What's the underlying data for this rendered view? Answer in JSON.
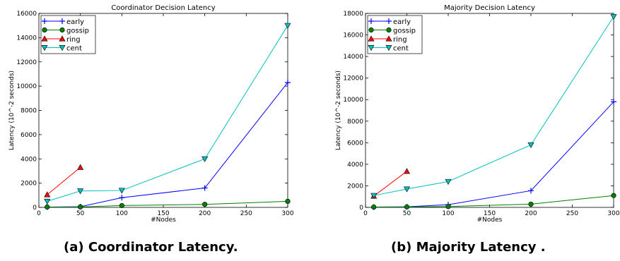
{
  "captions": {
    "a": "(a) Coordinator Latency.",
    "b": "(b) Majority Latency ."
  },
  "colors": {
    "early": "#0000ff",
    "gossip": "#008000",
    "ring": "#ff0000",
    "cent": "#00bfbf"
  },
  "chart_data": [
    {
      "type": "line",
      "title": "Coordinator Decision Latency",
      "xlabel": "#Nodes",
      "ylabel": "Latency (10^-2 seconds)",
      "xlim": [
        0,
        300
      ],
      "ylim": [
        0,
        16000
      ],
      "xticks": [
        0,
        50,
        100,
        150,
        200,
        250,
        300
      ],
      "yticks": [
        0,
        2000,
        4000,
        6000,
        8000,
        10000,
        12000,
        14000,
        16000
      ],
      "grid": false,
      "legend_position": "top-left",
      "series": [
        {
          "name": "early",
          "marker": "plus",
          "x": [
            10,
            50,
            100,
            200,
            300
          ],
          "y": [
            30,
            60,
            800,
            1600,
            10300
          ]
        },
        {
          "name": "gossip",
          "marker": "circle",
          "x": [
            10,
            50,
            100,
            200,
            300
          ],
          "y": [
            30,
            40,
            150,
            250,
            500
          ]
        },
        {
          "name": "ring",
          "marker": "triangle-up",
          "x": [
            10,
            50
          ],
          "y": [
            1050,
            3300
          ]
        },
        {
          "name": "cent",
          "marker": "triangle-down",
          "x": [
            10,
            50,
            100,
            200,
            300
          ],
          "y": [
            500,
            1350,
            1400,
            4000,
            15000
          ]
        }
      ]
    },
    {
      "type": "line",
      "title": "Majority Decision Latency",
      "xlabel": "#Nodes",
      "ylabel": "Latency (10^-2 seconds)",
      "xlim": [
        0,
        300
      ],
      "ylim": [
        0,
        18000
      ],
      "xticks": [
        0,
        50,
        100,
        150,
        200,
        250,
        300
      ],
      "yticks": [
        0,
        2000,
        4000,
        6000,
        8000,
        10000,
        12000,
        14000,
        16000,
        18000
      ],
      "grid": false,
      "legend_position": "top-left",
      "series": [
        {
          "name": "early",
          "marker": "plus",
          "x": [
            10,
            50,
            100,
            200,
            300
          ],
          "y": [
            30,
            60,
            250,
            1550,
            9800
          ]
        },
        {
          "name": "gossip",
          "marker": "circle",
          "x": [
            10,
            50,
            100,
            200,
            300
          ],
          "y": [
            30,
            40,
            80,
            300,
            1100
          ]
        },
        {
          "name": "ring",
          "marker": "triangle-up",
          "x": [
            10,
            50
          ],
          "y": [
            1050,
            3350
          ]
        },
        {
          "name": "cent",
          "marker": "triangle-down",
          "x": [
            10,
            50,
            100,
            200,
            300
          ],
          "y": [
            1100,
            1700,
            2400,
            5800,
            17700
          ]
        }
      ]
    }
  ]
}
